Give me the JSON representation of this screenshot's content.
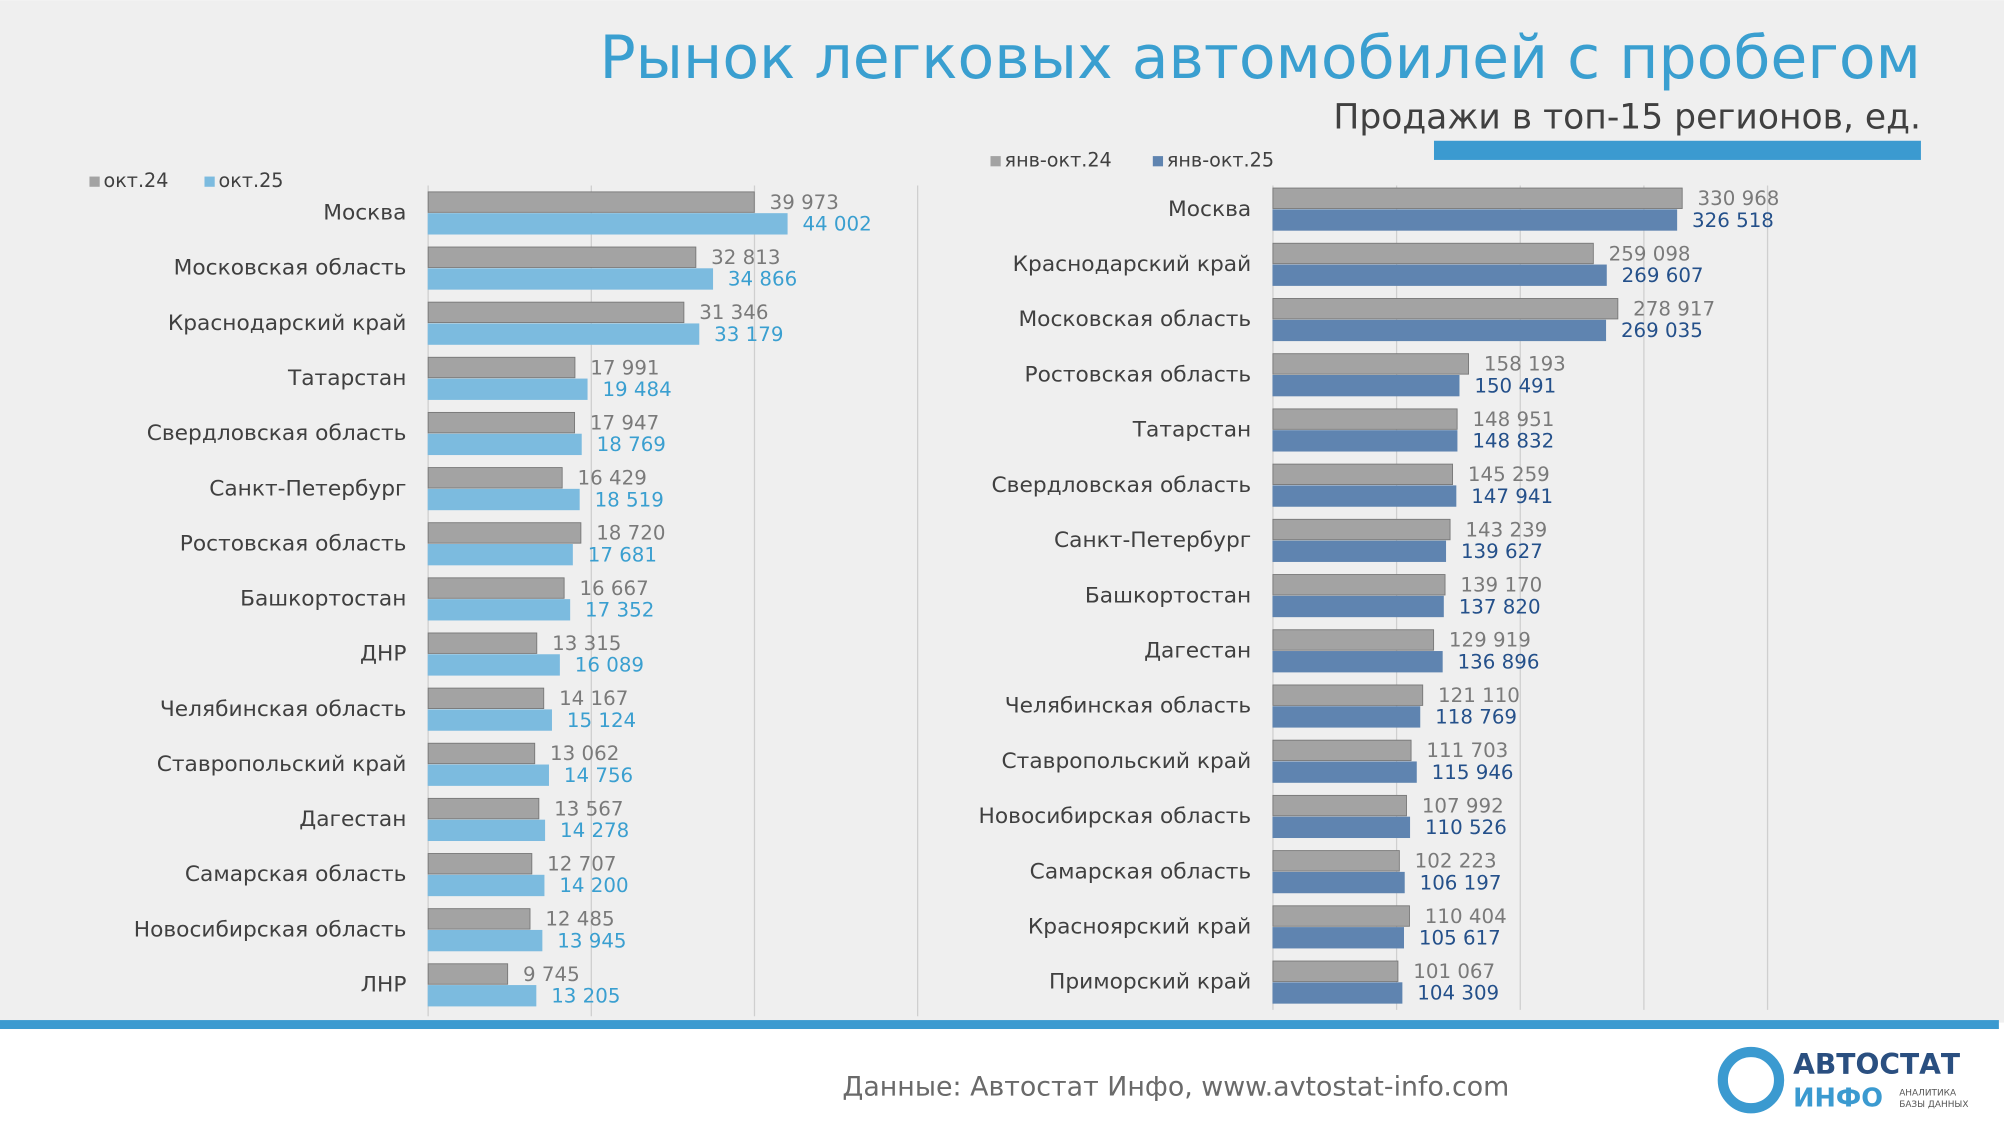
{
  "header": {
    "title": "Рынок легковых автомобилей с пробегом",
    "subtitle": "Продажи в топ-15 регионов, ед."
  },
  "footer": {
    "source": "Данные: Автостат Инфо, www.avtostat-info.com",
    "logo_top": "АВТОСТАТ",
    "logo_bottom": "ИНФО",
    "logo_tagline_1": "АНАЛИТИКА",
    "logo_tagline_2": "БАЗЫ ДАННЫХ"
  },
  "chart_data": [
    {
      "type": "bar",
      "orientation": "horizontal",
      "grid": true,
      "xlim": [
        0,
        60000
      ],
      "xticks": [
        0,
        20000,
        40000,
        60000
      ],
      "categories": [
        "Москва",
        "Московская область",
        "Краснодарский край",
        "Татарстан",
        "Свердловская область",
        "Санкт-Петербург",
        "Ростовская область",
        "Башкортостан",
        "ДНР",
        "Челябинская область",
        "Ставропольский край",
        "Дагестан",
        "Самарская область",
        "Новосибирская область",
        "ЛНР"
      ],
      "series": [
        {
          "name": "окт.24",
          "color": "#a3a3a3",
          "label_color": "#7a7a7a",
          "values": [
            39973,
            32813,
            31346,
            17991,
            17947,
            16429,
            18720,
            16667,
            13315,
            14167,
            13062,
            13567,
            12707,
            12485,
            9745
          ],
          "value_labels": [
            "39 973",
            "32 813",
            "31 346",
            "17 991",
            "17 947",
            "16 429",
            "18 720",
            "16 667",
            "13 315",
            "14 167",
            "13 062",
            "13 567",
            "12 707",
            "12 485",
            "9 745"
          ]
        },
        {
          "name": "окт.25",
          "color": "#7cbbdf",
          "label_color": "#3a9fd0",
          "values": [
            44002,
            34866,
            33179,
            19484,
            18769,
            18519,
            17681,
            17352,
            16089,
            15124,
            14756,
            14278,
            14200,
            13945,
            13205
          ],
          "value_labels": [
            "44 002",
            "34 866",
            "33 179",
            "19 484",
            "18 769",
            "18 519",
            "17 681",
            "17 352",
            "16 089",
            "15 124",
            "14 756",
            "14 278",
            "14 200",
            "13 945",
            "13 205"
          ]
        }
      ]
    },
    {
      "type": "bar",
      "orientation": "horizontal",
      "grid": true,
      "xlim": [
        0,
        400000
      ],
      "xticks": [
        0,
        100000,
        200000,
        300000,
        400000
      ],
      "categories": [
        "Москва",
        "Краснодарский край",
        "Московская область",
        "Ростовская область",
        "Татарстан",
        "Свердловская область",
        "Санкт-Петербург",
        "Башкортостан",
        "Дагестан",
        "Челябинская область",
        "Ставропольский край",
        "Новосибирская область",
        "Самарская область",
        "Красноярский край",
        "Приморский край"
      ],
      "series": [
        {
          "name": "янв-окт.24",
          "color": "#a3a3a3",
          "label_color": "#7a7a7a",
          "values": [
            330968,
            259098,
            278917,
            158193,
            148951,
            145259,
            143239,
            139170,
            129919,
            121110,
            111703,
            107992,
            102223,
            110404,
            101067
          ],
          "value_labels": [
            "330 968",
            "259 098",
            "278 917",
            "158 193",
            "148 951",
            "145 259",
            "143 239",
            "139 170",
            "129 919",
            "121 110",
            "111 703",
            "107 992",
            "102 223",
            "110 404",
            "101 067"
          ]
        },
        {
          "name": "янв-окт.25",
          "color": "#5f84b0",
          "label_color": "#24508a",
          "values": [
            326518,
            269607,
            269035,
            150491,
            148832,
            147941,
            139627,
            137820,
            136896,
            118769,
            115946,
            110526,
            106197,
            105617,
            104309
          ],
          "value_labels": [
            "326 518",
            "269 607",
            "269 035",
            "150 491",
            "148 832",
            "147 941",
            "139 627",
            "137 820",
            "136 896",
            "118 769",
            "115 946",
            "110 526",
            "106 197",
            "105 617",
            "104 309"
          ]
        }
      ]
    }
  ]
}
